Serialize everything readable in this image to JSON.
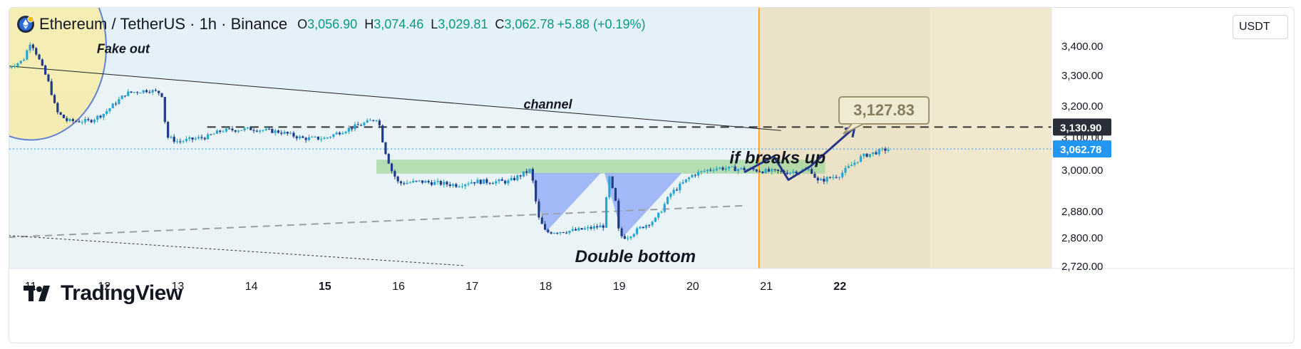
{
  "header": {
    "symbol": "Ethereum / TetherUS · 1h · Binance",
    "open_label": "O",
    "open": "3,056.90",
    "high_label": "H",
    "high": "3,074.46",
    "low_label": "L",
    "low": "3,029.81",
    "close_label": "C",
    "close": "3,062.78",
    "change": "+5.88 (+0.19%)"
  },
  "currency": "USDT",
  "brand": "TradingView",
  "colors": {
    "up": "#26a69a",
    "down": "#1e3a8a",
    "accent_blue": "#2962ff",
    "current_price_tag": "#2196f3",
    "orange_line": "#f7931a",
    "future_zone": "#f2e6c8"
  },
  "chart_data": {
    "type": "candlestick",
    "symbol": "ETHUSDT",
    "timeframe": "1h",
    "exchange": "Binance",
    "ylim": [
      2720,
      3450
    ],
    "y_ticks": [
      "3,400.00",
      "3,300.00",
      "3,200.00",
      "3,100.00",
      "3,000.00",
      "2,880.00",
      "2,800.00",
      "2,720.00"
    ],
    "y_tick_values": [
      3400,
      3300,
      3200,
      3100,
      3000,
      2880,
      2800,
      2720
    ],
    "x_ticks": [
      "11",
      "12",
      "13",
      "14",
      "15",
      "16",
      "17",
      "18",
      "19",
      "20",
      "21",
      "22"
    ],
    "x_tick_values": [
      11,
      12,
      13,
      14,
      15,
      16,
      17,
      18,
      19,
      20,
      21,
      22
    ],
    "x_bold_ticks": [
      "15",
      "22"
    ],
    "xlim": [
      10.7,
      25.0
    ],
    "price_path": [
      [
        10.7,
        3325
      ],
      [
        10.9,
        3350
      ],
      [
        11.0,
        3415
      ],
      [
        11.1,
        3360
      ],
      [
        11.25,
        3270
      ],
      [
        11.35,
        3180
      ],
      [
        11.5,
        3150
      ],
      [
        11.8,
        3150
      ],
      [
        12.0,
        3175
      ],
      [
        12.3,
        3240
      ],
      [
        12.6,
        3250
      ],
      [
        12.78,
        3240
      ],
      [
        12.85,
        3100
      ],
      [
        13.0,
        3085
      ],
      [
        13.4,
        3100
      ],
      [
        13.6,
        3120
      ],
      [
        14.0,
        3125
      ],
      [
        14.4,
        3115
      ],
      [
        14.7,
        3095
      ],
      [
        15.0,
        3095
      ],
      [
        15.2,
        3115
      ],
      [
        15.5,
        3140
      ],
      [
        15.72,
        3160
      ],
      [
        15.8,
        3070
      ],
      [
        15.9,
        3000
      ],
      [
        16.0,
        2960
      ],
      [
        16.3,
        2965
      ],
      [
        16.8,
        2955
      ],
      [
        17.0,
        2965
      ],
      [
        17.5,
        2965
      ],
      [
        17.8,
        3000
      ],
      [
        17.9,
        2860
      ],
      [
        18.0,
        2815
      ],
      [
        18.4,
        2820
      ],
      [
        18.8,
        2835
      ],
      [
        18.85,
        2990
      ],
      [
        18.95,
        2905
      ],
      [
        19.0,
        2805
      ],
      [
        19.1,
        2800
      ],
      [
        19.3,
        2830
      ],
      [
        19.5,
        2855
      ],
      [
        19.7,
        2930
      ],
      [
        20.0,
        2985
      ],
      [
        20.3,
        3005
      ],
      [
        20.8,
        3000
      ],
      [
        21.0,
        2995
      ],
      [
        21.3,
        2992
      ],
      [
        21.6,
        3000
      ],
      [
        21.7,
        2965
      ],
      [
        22.0,
        2985
      ],
      [
        22.3,
        3040
      ],
      [
        22.6,
        3060
      ],
      [
        22.7,
        3062.78
      ]
    ],
    "last_close": 3062.78,
    "price_tags": [
      {
        "value": 3130.9,
        "label": "3,130.90",
        "style": "dark"
      },
      {
        "value": 3062.78,
        "label": "3,062.78",
        "style": "current"
      }
    ],
    "annotations": [
      {
        "text": "Fake out",
        "x": 11.9,
        "y": 3375,
        "style": "italic-bold"
      },
      {
        "text": "channel",
        "x": 17.7,
        "y": 3190,
        "style": "italic-bold"
      },
      {
        "text": "Double bottom",
        "x": 18.4,
        "y": 2730,
        "style": "italic-bold-large"
      },
      {
        "text": "if breaks up",
        "x": 20.5,
        "y": 3018,
        "style": "italic-bold-large"
      },
      {
        "text": "3,127.83",
        "x": 21.0,
        "y": 3180,
        "style": "callout"
      }
    ],
    "levels": {
      "resistance_dashed": {
        "value": 3130.9,
        "x_start": 13.4,
        "x_end": 25.0
      },
      "current_dotted": {
        "value": 3062.78
      },
      "green_zone": {
        "low": 2988,
        "high": 3030,
        "x_start": 15.7,
        "x_end": 21.8
      },
      "channel_top": {
        "from": [
          10.7,
          3330
        ],
        "to": [
          21.2,
          3120
        ]
      },
      "lower_dashed": {
        "from": [
          10.7,
          2800
        ],
        "to": [
          20.7,
          2895
        ]
      },
      "lower_dotted": {
        "from": [
          10.7,
          2805
        ],
        "to": [
          16.9,
          2720
        ]
      }
    },
    "double_bottom_triangles": [
      [
        [
          17.8,
          2990
        ],
        [
          18.0,
          2815
        ],
        [
          18.75,
          2990
        ]
      ],
      [
        [
          18.8,
          2990
        ],
        [
          19.05,
          2800
        ],
        [
          19.85,
          2990
        ]
      ]
    ],
    "projection_path": [
      [
        20.7,
        2992
      ],
      [
        21.1,
        3040
      ],
      [
        21.3,
        2970
      ],
      [
        21.6,
        3010
      ],
      [
        22.2,
        3130
      ]
    ],
    "future_zone": {
      "x_start": 20.9,
      "x_end": 25.0,
      "vertical_line_x": 20.9
    },
    "fakeout_circle": {
      "cx": 11.0,
      "cy": 3350,
      "r_x_days": 1.0
    },
    "legend": "none",
    "grid": false
  }
}
